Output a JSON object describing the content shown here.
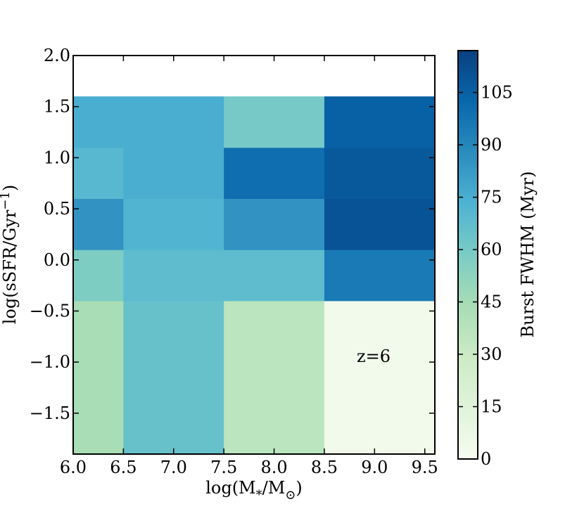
{
  "chart_data": {
    "type": "heatmap",
    "xlabel": "log(M*/M⊙)",
    "ylabel": "log(sSFR/Gyr⁻¹)",
    "annotation": "z=6",
    "xlim": [
      6.0,
      9.6
    ],
    "ylim": [
      -1.9,
      2.0
    ],
    "x_ticks": [
      6.0,
      6.5,
      7.0,
      7.5,
      8.0,
      8.5,
      9.0,
      9.5
    ],
    "x_tick_labels": [
      "6.0",
      "6.5",
      "7.0",
      "7.5",
      "8.0",
      "8.5",
      "9.0",
      "9.5"
    ],
    "y_ticks": [
      2.0,
      1.5,
      1.0,
      0.5,
      0.0,
      -0.5,
      -1.0,
      -1.5
    ],
    "y_tick_labels": [
      "2.0",
      "1.5",
      "1.0",
      "0.5",
      "0.0",
      "−0.5",
      "−1.0",
      "−1.5"
    ],
    "x_bin_edges": [
      6.0,
      6.5,
      7.5,
      8.5,
      9.6
    ],
    "y_bin_edges": [
      -1.9,
      -0.4,
      0.1,
      0.6,
      1.1,
      1.6
    ],
    "values": [
      [
        44,
        65,
        36,
        3
      ],
      [
        58,
        68,
        68,
        95
      ],
      [
        85,
        72,
        85,
        110
      ],
      [
        70,
        75,
        100,
        108
      ],
      [
        75,
        75,
        60,
        105
      ]
    ],
    "colorbar": {
      "label": "Burst FWHM (Myr)",
      "min": 0,
      "max": 117,
      "ticks": [
        0,
        15,
        30,
        45,
        60,
        75,
        90,
        105
      ],
      "tick_labels": [
        "0",
        "15",
        "30",
        "45",
        "60",
        "75",
        "90",
        "105"
      ],
      "colormap": "GnBu"
    },
    "colormap_stops": [
      "#f7fcf0",
      "#e0f3db",
      "#ccebc5",
      "#a8ddb5",
      "#7bccc4",
      "#4eb3d3",
      "#2b8cbe",
      "#0868ac",
      "#084081"
    ]
  }
}
